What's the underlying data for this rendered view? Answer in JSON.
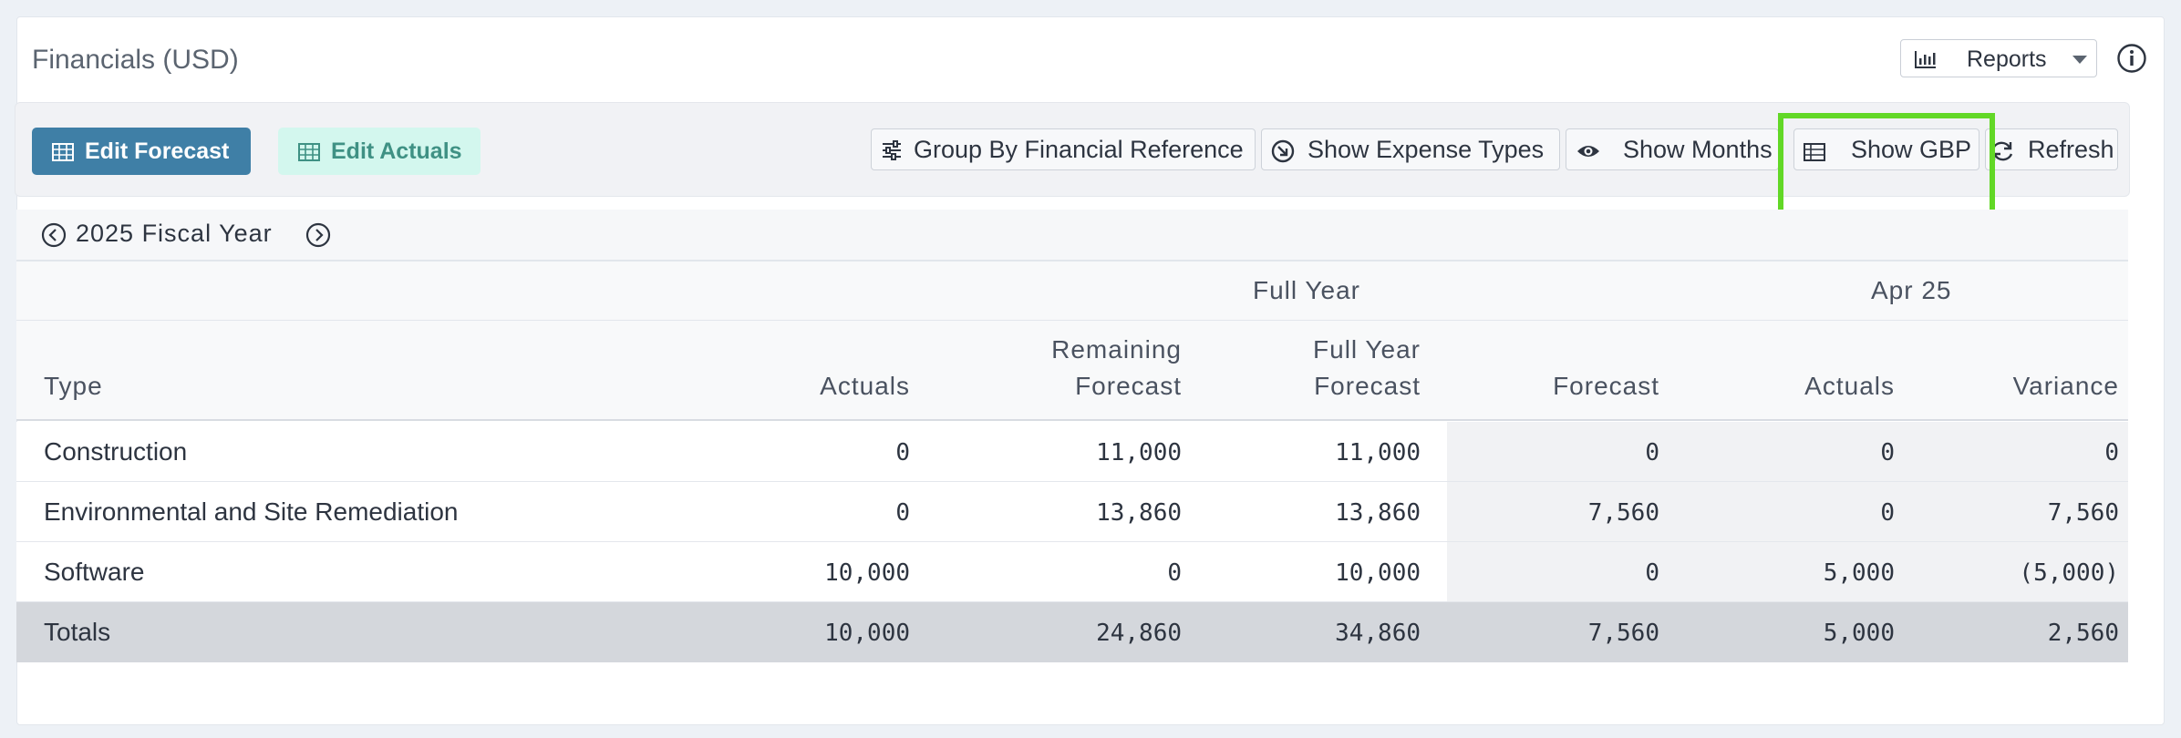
{
  "card": {
    "title": "Financials (USD)"
  },
  "reports": {
    "label": "Reports"
  },
  "toolbar": {
    "edit_forecast": "Edit Forecast",
    "edit_actuals": "Edit Actuals",
    "group_by": "Group By Financial Reference",
    "show_expense_types": "Show Expense Types",
    "show_months": "Show Months",
    "show_gbp": "Show GBP",
    "refresh": "Refresh"
  },
  "fiscal": {
    "label": "2025 Fiscal Year"
  },
  "table": {
    "groups": {
      "full_year": "Full Year",
      "apr": "Apr 25"
    },
    "headers": {
      "type": "Type",
      "actuals": "Actuals",
      "remaining_1": "Remaining",
      "remaining_2": "Forecast",
      "fy_1": "Full Year",
      "fy_2": "Forecast",
      "forecast": "Forecast",
      "m_actuals": "Actuals",
      "variance": "Variance"
    },
    "rows": [
      {
        "type": "Construction",
        "actuals": "0",
        "remaining": "11,000",
        "fy": "11,000",
        "forecast": "0",
        "m_actuals": "0",
        "variance": "0"
      },
      {
        "type": "Environmental and Site Remediation",
        "actuals": "0",
        "remaining": "13,860",
        "fy": "13,860",
        "forecast": "7,560",
        "m_actuals": "0",
        "variance": "7,560"
      },
      {
        "type": "Software",
        "actuals": "10,000",
        "remaining": "0",
        "fy": "10,000",
        "forecast": "0",
        "m_actuals": "5,000",
        "variance": "(5,000)"
      }
    ],
    "totals": {
      "type": "Totals",
      "actuals": "10,000",
      "remaining": "24,860",
      "fy": "34,860",
      "forecast": "7,560",
      "m_actuals": "5,000",
      "variance": "2,560"
    }
  }
}
